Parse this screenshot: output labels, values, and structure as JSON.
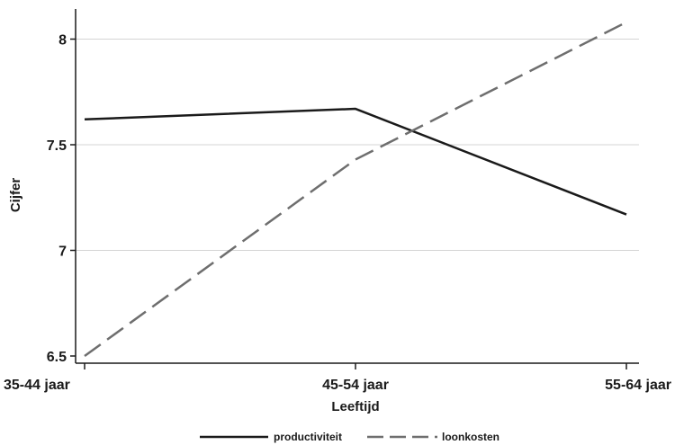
{
  "chart_data": {
    "type": "line",
    "title": "",
    "xlabel": "Leeftijd",
    "ylabel": "Cijfer",
    "categories": [
      "35-44 jaar",
      "45-54 jaar",
      "55-64 jaar"
    ],
    "ylim": [
      6.5,
      8.1
    ],
    "yticks": [
      6.5,
      7,
      7.5,
      8
    ],
    "ytick_labels": [
      "6.5",
      "7",
      "7.5",
      "8"
    ],
    "grid": true,
    "legend_position": "bottom",
    "series": [
      {
        "name": "productiviteit",
        "values": [
          7.62,
          7.67,
          7.17
        ],
        "color": "#1a1a1a",
        "dash": "solid"
      },
      {
        "name": "loonkosten",
        "values": [
          6.5,
          7.43,
          8.08
        ],
        "color": "#6e6e6e",
        "dash": "dashed"
      }
    ]
  }
}
